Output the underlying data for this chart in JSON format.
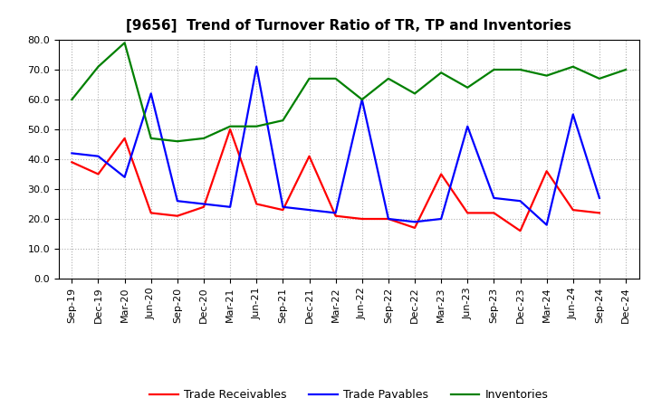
{
  "title": "[9656]  Trend of Turnover Ratio of TR, TP and Inventories",
  "x_labels": [
    "Sep-19",
    "Dec-19",
    "Mar-20",
    "Jun-20",
    "Sep-20",
    "Dec-20",
    "Mar-21",
    "Jun-21",
    "Sep-21",
    "Dec-21",
    "Mar-22",
    "Jun-22",
    "Sep-22",
    "Dec-22",
    "Mar-23",
    "Jun-23",
    "Sep-23",
    "Dec-23",
    "Mar-24",
    "Jun-24",
    "Sep-24",
    "Dec-24"
  ],
  "trade_receivables": [
    39,
    35,
    47,
    22,
    21,
    24,
    50,
    25,
    23,
    41,
    21,
    20,
    20,
    17,
    35,
    22,
    22,
    16,
    36,
    23,
    22,
    null
  ],
  "trade_payables": [
    42,
    41,
    34,
    62,
    26,
    25,
    24,
    71,
    24,
    23,
    22,
    60,
    20,
    19,
    20,
    51,
    27,
    26,
    18,
    55,
    27,
    null
  ],
  "inventories": [
    60,
    71,
    79,
    47,
    46,
    47,
    51,
    51,
    53,
    67,
    67,
    60,
    67,
    62,
    69,
    64,
    70,
    70,
    68,
    71,
    67,
    70
  ],
  "ylim": [
    0,
    80
  ],
  "yticks": [
    0.0,
    10.0,
    20.0,
    30.0,
    40.0,
    50.0,
    60.0,
    70.0,
    80.0
  ],
  "line_colors": {
    "trade_receivables": "#ff0000",
    "trade_payables": "#0000ff",
    "inventories": "#008000"
  },
  "legend_labels": [
    "Trade Receivables",
    "Trade Payables",
    "Inventories"
  ],
  "bg_color": "#ffffff",
  "plot_bg_color": "#ffffff",
  "grid_color": "#b0b0b0",
  "linewidth": 1.6,
  "title_fontsize": 11,
  "tick_fontsize": 8,
  "legend_fontsize": 9
}
